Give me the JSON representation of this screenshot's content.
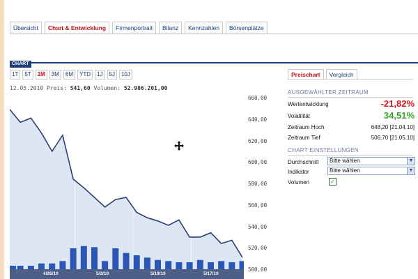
{
  "tabs": [
    {
      "label": "Übersicht",
      "active": false
    },
    {
      "label": "Chart & Entwicklung",
      "active": true
    },
    {
      "label": "Firmenportrait",
      "active": false
    },
    {
      "label": "Bilanz",
      "active": false
    },
    {
      "label": "Kennzahlen",
      "active": false
    },
    {
      "label": "Börsenplätze",
      "active": false
    }
  ],
  "chart_header": "CHART",
  "periods": [
    {
      "label": "1T",
      "active": false
    },
    {
      "label": "5T",
      "active": false
    },
    {
      "label": "1M",
      "active": true
    },
    {
      "label": "3M",
      "active": false
    },
    {
      "label": "6M",
      "active": false
    },
    {
      "label": "YTD",
      "active": false
    },
    {
      "label": "1J",
      "active": false
    },
    {
      "label": "5J",
      "active": false
    },
    {
      "label": "10J",
      "active": false
    }
  ],
  "info": {
    "date": "12.05.2010",
    "price_label": "Preis:",
    "price": "541,60",
    "volume_label": "Volumen:",
    "volume": "52.986.201,00"
  },
  "right_tabs": [
    {
      "label": "Preischart",
      "active": true
    },
    {
      "label": "Vergleich",
      "active": false
    }
  ],
  "selected_period": {
    "title": "AUSGEWÄHLTER ZEITRAUM",
    "wertentwicklung_label": "Wertentwicklung",
    "wertentwicklung_value": "-21,82%",
    "volatilitaet_label": "Volatilität",
    "volatilitaet_value": "34,51%",
    "hoch_label": "Zeitraum Hoch",
    "hoch_value": "648,20 [21.04.10]",
    "tief_label": "Zeitraum Tief",
    "tief_value": "506,70 [21.05.10]"
  },
  "chart_settings": {
    "title": "CHART EINSTELLUNGEN",
    "durchschnitt_label": "Durchschnitt",
    "durchschnitt_value": "Bitte wählen",
    "indikator_label": "Indikator",
    "indikator_value": "Bitte wählen",
    "volumen_label": "Volumen",
    "volumen_checked": true,
    "check_glyph": "✓"
  },
  "colors": {
    "accent_red": "#d7161e",
    "positive_green": "#3aa629",
    "nav_blue": "#1f3f7a",
    "line": "#2b3f73",
    "area": "#dde7f4",
    "bars": "#2a56b5"
  },
  "icons": {
    "move": "move-icon",
    "dropdown": "chevron-down-icon",
    "checkbox": "checkbox-icon"
  },
  "chart_data": {
    "type": "line",
    "ylim": [
      500,
      660
    ],
    "yticks": [
      "660,00",
      "640,00",
      "620,00",
      "600,00",
      "580,00",
      "560,00",
      "540,00",
      "520,00",
      "500,00"
    ],
    "xticks": [
      "4/26/10",
      "5/3/10",
      "5/10/10",
      "5/17/10"
    ],
    "series": [
      {
        "values": [
          649,
          637,
          641,
          627,
          610,
          625,
          584,
          576,
          567,
          558,
          565,
          567,
          553,
          548,
          545,
          541,
          546,
          530,
          530,
          534,
          524,
          527,
          511
        ]
      }
    ],
    "volume": [
      3,
      3,
      3,
      5,
      5,
      7,
      18,
      20,
      19,
      7,
      18,
      14,
      12,
      10,
      8,
      7,
      6,
      6,
      8,
      6,
      7,
      6,
      7
    ]
  }
}
